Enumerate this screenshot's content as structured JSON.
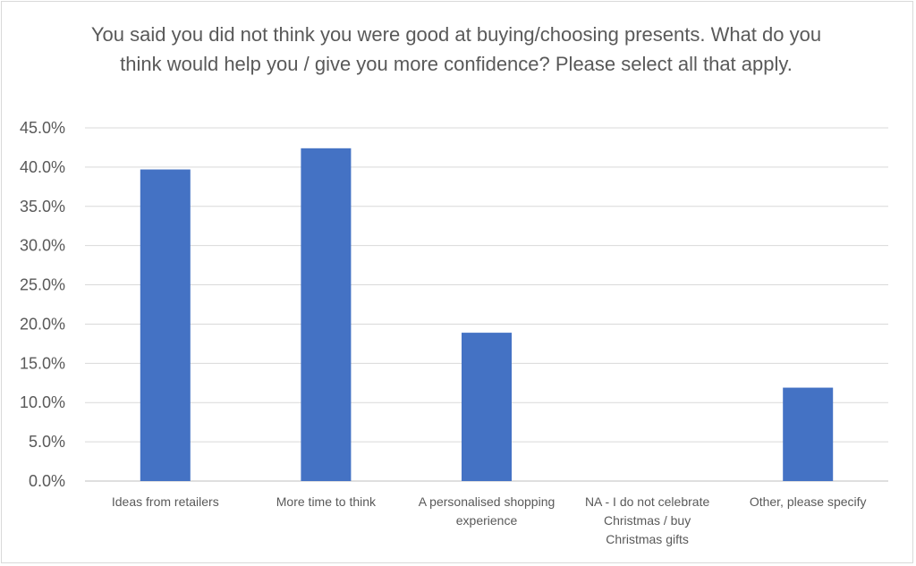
{
  "chart_data": {
    "type": "bar",
    "title": "You said you did not think you were good at buying/choosing presents. What do you think would help you / give you more confidence? Please select all that apply.",
    "categories": [
      [
        "Ideas from retailers"
      ],
      [
        "More time to think"
      ],
      [
        "A personalised shopping",
        "experience"
      ],
      [
        "NA - I do not celebrate",
        "Christmas / buy",
        "Christmas gifts"
      ],
      [
        "Other, please specify"
      ]
    ],
    "values": [
      39.7,
      42.4,
      18.9,
      0.0,
      11.9
    ],
    "ylim": [
      0,
      45
    ],
    "yticks": [
      "0.0%",
      "5.0%",
      "10.0%",
      "15.0%",
      "20.0%",
      "25.0%",
      "30.0%",
      "35.0%",
      "40.0%",
      "45.0%"
    ],
    "grid": true,
    "bar_color": "#4472c4"
  }
}
